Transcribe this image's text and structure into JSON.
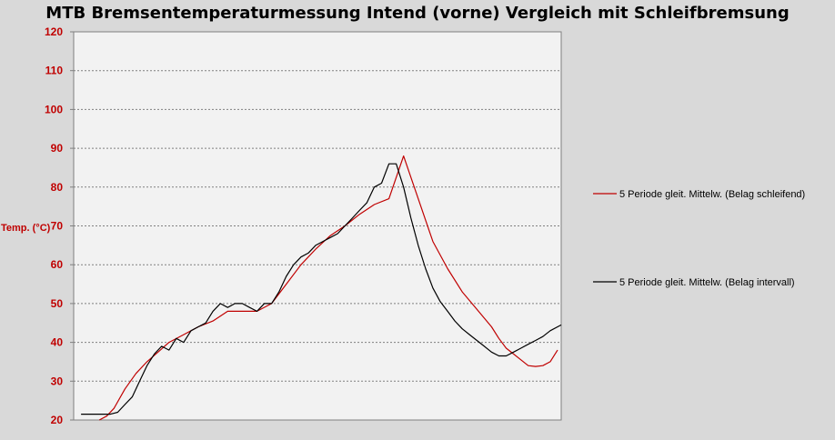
{
  "chart_data": {
    "type": "line",
    "title": "MTB Bremsentemperaturmessung Intend (vorne) Vergleich mit Schleifbremsung",
    "xlabel": "",
    "ylabel": "Temp. (°C)",
    "ylim": [
      20,
      120
    ],
    "yticks": [
      20,
      30,
      40,
      50,
      60,
      70,
      80,
      90,
      100,
      110,
      120
    ],
    "xlim": [
      0,
      133
    ],
    "grid": true,
    "legend_position": "right",
    "plot_background": "#f2f2f2",
    "series": [
      {
        "name": "5 Periode gleit. Mittelw. (Belag schleifend)",
        "color": "#c00000",
        "x": [
          7,
          9,
          11,
          14,
          17,
          20,
          23,
          26,
          30,
          34,
          38,
          42,
          46,
          50,
          54,
          58,
          62,
          66,
          70,
          74,
          78,
          82,
          86,
          90,
          94,
          98,
          102,
          106,
          110,
          114,
          116,
          118,
          120,
          122,
          124,
          126,
          128,
          130,
          132
        ],
        "y": [
          20,
          21,
          23,
          28,
          32,
          35,
          37.5,
          40,
          42,
          44,
          45.5,
          48,
          48,
          48,
          50,
          55,
          60,
          64,
          67.5,
          70,
          73,
          75.5,
          77,
          88,
          77,
          66,
          59,
          53,
          48.5,
          44,
          41,
          38.5,
          37,
          35.5,
          34,
          33.8,
          34,
          35,
          38
        ]
      },
      {
        "name": "5 Periode gleit. Mittelw. (Belag intervall)",
        "color": "#000000",
        "x": [
          2,
          6,
          10,
          12,
          14,
          16,
          18,
          20,
          22,
          24,
          26,
          28,
          30,
          32,
          34,
          36,
          38,
          40,
          42,
          44,
          46,
          48,
          50,
          52,
          54,
          56,
          58,
          60,
          62,
          64,
          66,
          68,
          70,
          72,
          74,
          76,
          78,
          80,
          82,
          84,
          86,
          88,
          90,
          92,
          94,
          96,
          98,
          100,
          102,
          104,
          106,
          108,
          110,
          112,
          114,
          116,
          118,
          120,
          122,
          124,
          126,
          128,
          130,
          133
        ],
        "y": [
          21.5,
          21.5,
          21.5,
          22,
          24,
          26,
          30,
          34,
          37,
          39,
          38,
          41,
          40,
          43,
          44,
          45,
          48,
          50,
          49,
          50,
          50,
          49,
          48,
          50,
          50,
          53,
          57,
          60,
          62,
          63,
          65,
          66,
          67,
          68,
          70,
          72,
          74,
          76,
          80,
          81,
          86,
          86,
          80,
          72,
          65,
          59,
          54,
          50.5,
          48,
          45.5,
          43.5,
          42,
          40.5,
          39,
          37.5,
          36.5,
          36.5,
          37.5,
          38.5,
          39.5,
          40.5,
          41.5,
          43,
          44.5
        ]
      }
    ]
  }
}
